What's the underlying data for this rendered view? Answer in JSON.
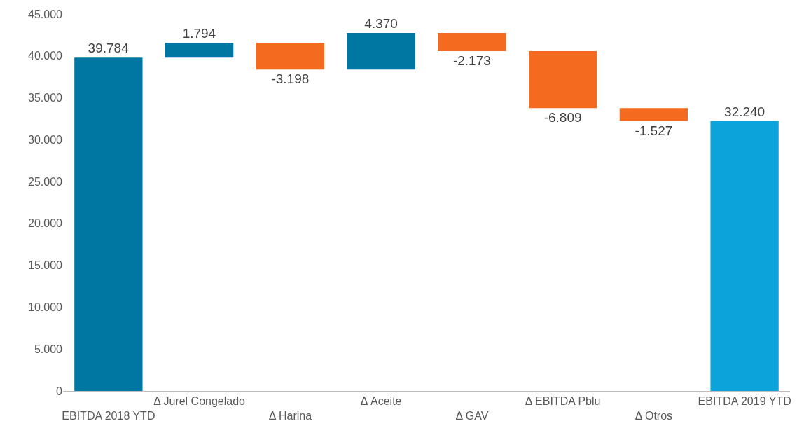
{
  "chart_data": {
    "type": "bar",
    "categories": [
      "EBITDA 2018 YTD",
      "Δ Jurel Congelado",
      "Δ Harina",
      "Δ Aceite",
      "Δ GAV",
      "Δ EBITDA Pblu",
      "Δ Otros",
      "EBITDA 2019 YTD"
    ],
    "values": [
      39784,
      1794,
      -3198,
      4370,
      -2173,
      -6809,
      -1527,
      32240
    ],
    "base": [
      0,
      39784,
      41578,
      38380,
      42750,
      40577,
      33768,
      0
    ],
    "colors": [
      "#0076a3",
      "#0076a3",
      "#f46a1f",
      "#0076a3",
      "#f46a1f",
      "#f46a1f",
      "#f46a1f",
      "#0ba3da"
    ],
    "value_labels": [
      "39.784",
      "1.794",
      "-3.198",
      "4.370",
      "-2.173",
      "-6.809",
      "-1.527",
      "32.240"
    ],
    "ylim": [
      0,
      45000
    ],
    "yticks": [
      {
        "value": 0,
        "label": "0"
      },
      {
        "value": 5000,
        "label": "5.000"
      },
      {
        "value": 10000,
        "label": "10.000"
      },
      {
        "value": 15000,
        "label": "15.000"
      },
      {
        "value": 20000,
        "label": "20.000"
      },
      {
        "value": 25000,
        "label": "25.000"
      },
      {
        "value": 30000,
        "label": "30.000"
      },
      {
        "value": 35000,
        "label": "35.000"
      },
      {
        "value": 40000,
        "label": "40.000"
      },
      {
        "value": 45000,
        "label": "45.000"
      }
    ],
    "grid": false
  }
}
